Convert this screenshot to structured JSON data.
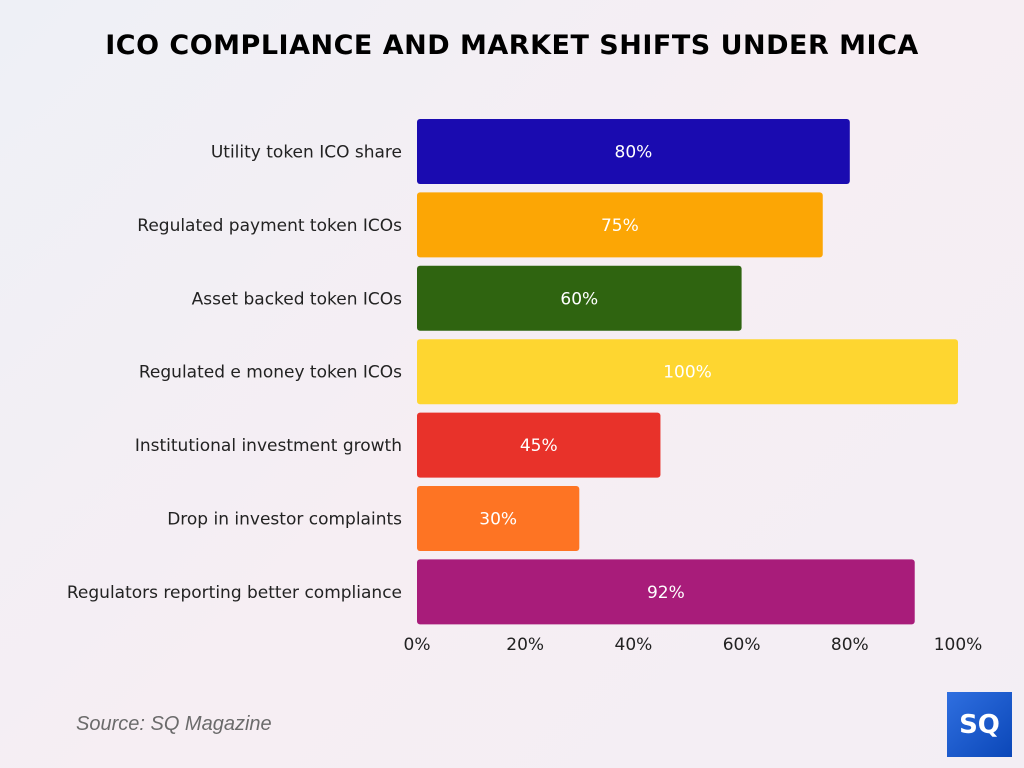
{
  "title": "ICO COMPLIANCE AND MARKET SHIFTS UNDER MICA",
  "source": "Source: SQ Magazine",
  "logo_text": "SQ",
  "chart_data": {
    "type": "bar",
    "orientation": "horizontal",
    "title": "ICO COMPLIANCE AND MARKET SHIFTS UNDER MICA",
    "categories": [
      "Utility token ICO share",
      "Regulated payment token ICOs",
      "Asset backed token ICOs",
      "Regulated e money token ICOs",
      "Institutional investment growth",
      "Drop in investor complaints",
      "Regulators reporting better compliance"
    ],
    "values": [
      80,
      75,
      60,
      100,
      45,
      30,
      92
    ],
    "labels": [
      "80%",
      "75%",
      "60%",
      "100%",
      "45%",
      "30%",
      "92%"
    ],
    "colors": [
      "#1a0bb0",
      "#fca605",
      "#2f6410",
      "#fed630",
      "#e8322a",
      "#fe7423",
      "#a81c7a"
    ],
    "xlim": [
      0,
      100
    ],
    "xticks": [
      "0%",
      "20%",
      "40%",
      "60%",
      "80%",
      "100%"
    ],
    "grid": false,
    "legend": "none"
  }
}
